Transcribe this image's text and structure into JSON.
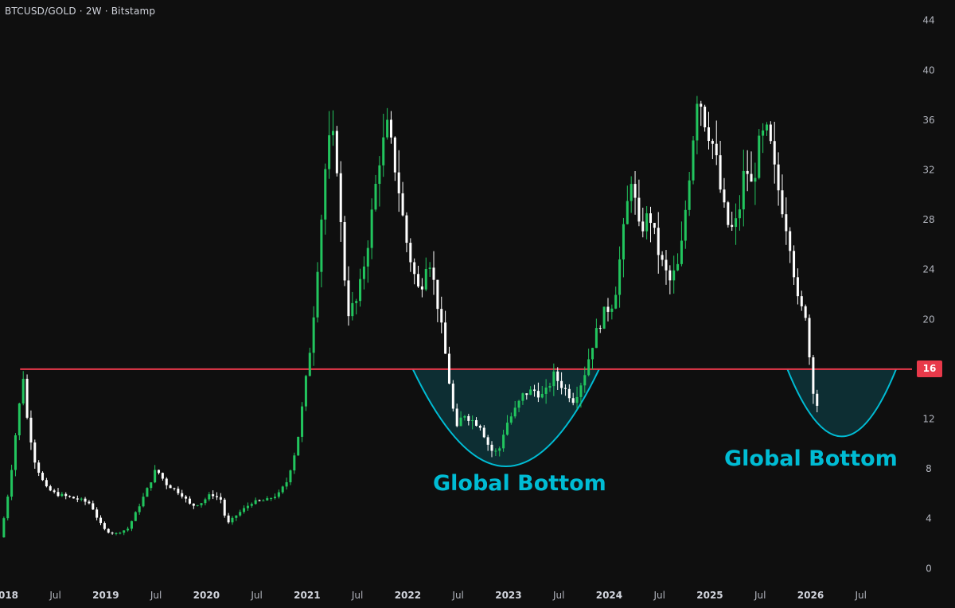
{
  "header": {
    "symbol": "BTCUSD/GOLD",
    "interval": "2W",
    "exchange": "Bitstamp"
  },
  "colors": {
    "background": "#0f0f0f",
    "up": "#22c55e",
    "down": "#ffffff",
    "level_line": "#e8394a",
    "bowl": "#00bcd4",
    "bowl_fill": "#0e3a40",
    "axis_text": "#b2b5be"
  },
  "annotations": {
    "label_1": "Global Bottom",
    "label_2": "Global Bottom",
    "level_badge": "16"
  },
  "chart_data": {
    "type": "candlestick",
    "title": "BTCUSD/GOLD · 2W · Bitstamp",
    "xlabel": "",
    "ylabel": "",
    "ylim": [
      -1,
      45
    ],
    "yticks": [
      0,
      4,
      8,
      12,
      16,
      20,
      24,
      28,
      32,
      36,
      40,
      44
    ],
    "x_range": [
      2017.95,
      2027.0
    ],
    "xticks": [
      {
        "x": 2018.0,
        "label": "2018",
        "year": true
      },
      {
        "x": 2018.5,
        "label": "Jul",
        "year": false
      },
      {
        "x": 2019.0,
        "label": "2019",
        "year": true
      },
      {
        "x": 2019.5,
        "label": "Jul",
        "year": false
      },
      {
        "x": 2020.0,
        "label": "2020",
        "year": true
      },
      {
        "x": 2020.5,
        "label": "Jul",
        "year": false
      },
      {
        "x": 2021.0,
        "label": "2021",
        "year": true
      },
      {
        "x": 2021.5,
        "label": "Jul",
        "year": false
      },
      {
        "x": 2022.0,
        "label": "2022",
        "year": true
      },
      {
        "x": 2022.5,
        "label": "Jul",
        "year": false
      },
      {
        "x": 2023.0,
        "label": "2023",
        "year": true
      },
      {
        "x": 2023.5,
        "label": "Jul",
        "year": false
      },
      {
        "x": 2024.0,
        "label": "2024",
        "year": true
      },
      {
        "x": 2024.5,
        "label": "Jul",
        "year": false
      },
      {
        "x": 2025.0,
        "label": "2025",
        "year": true
      },
      {
        "x": 2025.5,
        "label": "Jul",
        "year": false
      },
      {
        "x": 2026.0,
        "label": "2026",
        "year": true
      },
      {
        "x": 2026.5,
        "label": "Jul",
        "year": false
      }
    ],
    "horizontal_line": 16,
    "bowls": [
      {
        "x_start": 2022.05,
        "x_end": 2023.9,
        "y_top": 16,
        "y_bottom": 8.2
      },
      {
        "x_start": 2025.77,
        "x_end": 2026.85,
        "y_top": 16,
        "y_bottom": 10.6
      }
    ],
    "price_path": [
      [
        2017.95,
        2.5
      ],
      [
        2018.0,
        4.5
      ],
      [
        2018.05,
        7.0
      ],
      [
        2018.1,
        10.5
      ],
      [
        2018.18,
        15.5
      ],
      [
        2018.22,
        12.0
      ],
      [
        2018.3,
        8.5
      ],
      [
        2018.4,
        6.5
      ],
      [
        2018.5,
        6.0
      ],
      [
        2018.6,
        5.8
      ],
      [
        2018.75,
        5.5
      ],
      [
        2018.85,
        5.2
      ],
      [
        2018.93,
        3.8
      ],
      [
        2019.0,
        3.0
      ],
      [
        2019.1,
        2.8
      ],
      [
        2019.22,
        3.2
      ],
      [
        2019.3,
        4.5
      ],
      [
        2019.42,
        6.5
      ],
      [
        2019.5,
        8.0
      ],
      [
        2019.6,
        6.8
      ],
      [
        2019.75,
        6.0
      ],
      [
        2019.85,
        5.0
      ],
      [
        2019.95,
        5.3
      ],
      [
        2020.05,
        6.0
      ],
      [
        2020.15,
        5.5
      ],
      [
        2020.2,
        3.5
      ],
      [
        2020.3,
        4.3
      ],
      [
        2020.45,
        5.3
      ],
      [
        2020.6,
        5.5
      ],
      [
        2020.72,
        6.0
      ],
      [
        2020.8,
        7.0
      ],
      [
        2020.9,
        10.0
      ],
      [
        2020.97,
        14.0
      ],
      [
        2021.05,
        19.0
      ],
      [
        2021.12,
        26.0
      ],
      [
        2021.2,
        34.0
      ],
      [
        2021.28,
        34.5
      ],
      [
        2021.33,
        28.0
      ],
      [
        2021.4,
        20.5
      ],
      [
        2021.5,
        21.5
      ],
      [
        2021.6,
        26.0
      ],
      [
        2021.72,
        33.0
      ],
      [
        2021.8,
        35.5
      ],
      [
        2021.9,
        31.0
      ],
      [
        2021.98,
        26.5
      ],
      [
        2022.05,
        24.0
      ],
      [
        2022.12,
        22.0
      ],
      [
        2022.2,
        25.5
      ],
      [
        2022.28,
        22.0
      ],
      [
        2022.35,
        18.5
      ],
      [
        2022.42,
        14.5
      ],
      [
        2022.48,
        11.0
      ],
      [
        2022.55,
        12.5
      ],
      [
        2022.62,
        12.0
      ],
      [
        2022.72,
        11.5
      ],
      [
        2022.82,
        9.5
      ],
      [
        2022.9,
        9.3
      ],
      [
        2022.97,
        11.5
      ],
      [
        2023.05,
        12.5
      ],
      [
        2023.15,
        14.0
      ],
      [
        2023.25,
        14.3
      ],
      [
        2023.35,
        13.8
      ],
      [
        2023.45,
        15.5
      ],
      [
        2023.55,
        14.5
      ],
      [
        2023.65,
        13.5
      ],
      [
        2023.75,
        15.5
      ],
      [
        2023.85,
        18.5
      ],
      [
        2023.95,
        20.5
      ],
      [
        2024.05,
        21.5
      ],
      [
        2024.15,
        27.5
      ],
      [
        2024.22,
        31.5
      ],
      [
        2024.3,
        27.0
      ],
      [
        2024.4,
        28.5
      ],
      [
        2024.5,
        25.0
      ],
      [
        2024.6,
        23.0
      ],
      [
        2024.7,
        24.5
      ],
      [
        2024.8,
        32.0
      ],
      [
        2024.88,
        38.5
      ],
      [
        2024.95,
        36.0
      ],
      [
        2025.05,
        33.5
      ],
      [
        2025.12,
        29.5
      ],
      [
        2025.2,
        27.0
      ],
      [
        2025.28,
        28.0
      ],
      [
        2025.35,
        32.5
      ],
      [
        2025.42,
        30.5
      ],
      [
        2025.5,
        34.5
      ],
      [
        2025.58,
        35.0
      ],
      [
        2025.65,
        31.5
      ],
      [
        2025.72,
        29.0
      ],
      [
        2025.8,
        26.0
      ],
      [
        2025.88,
        21.0
      ],
      [
        2025.95,
        20.5
      ],
      [
        2026.0,
        16.0
      ],
      [
        2026.05,
        13.0
      ],
      [
        2026.1,
        13.5
      ]
    ]
  }
}
